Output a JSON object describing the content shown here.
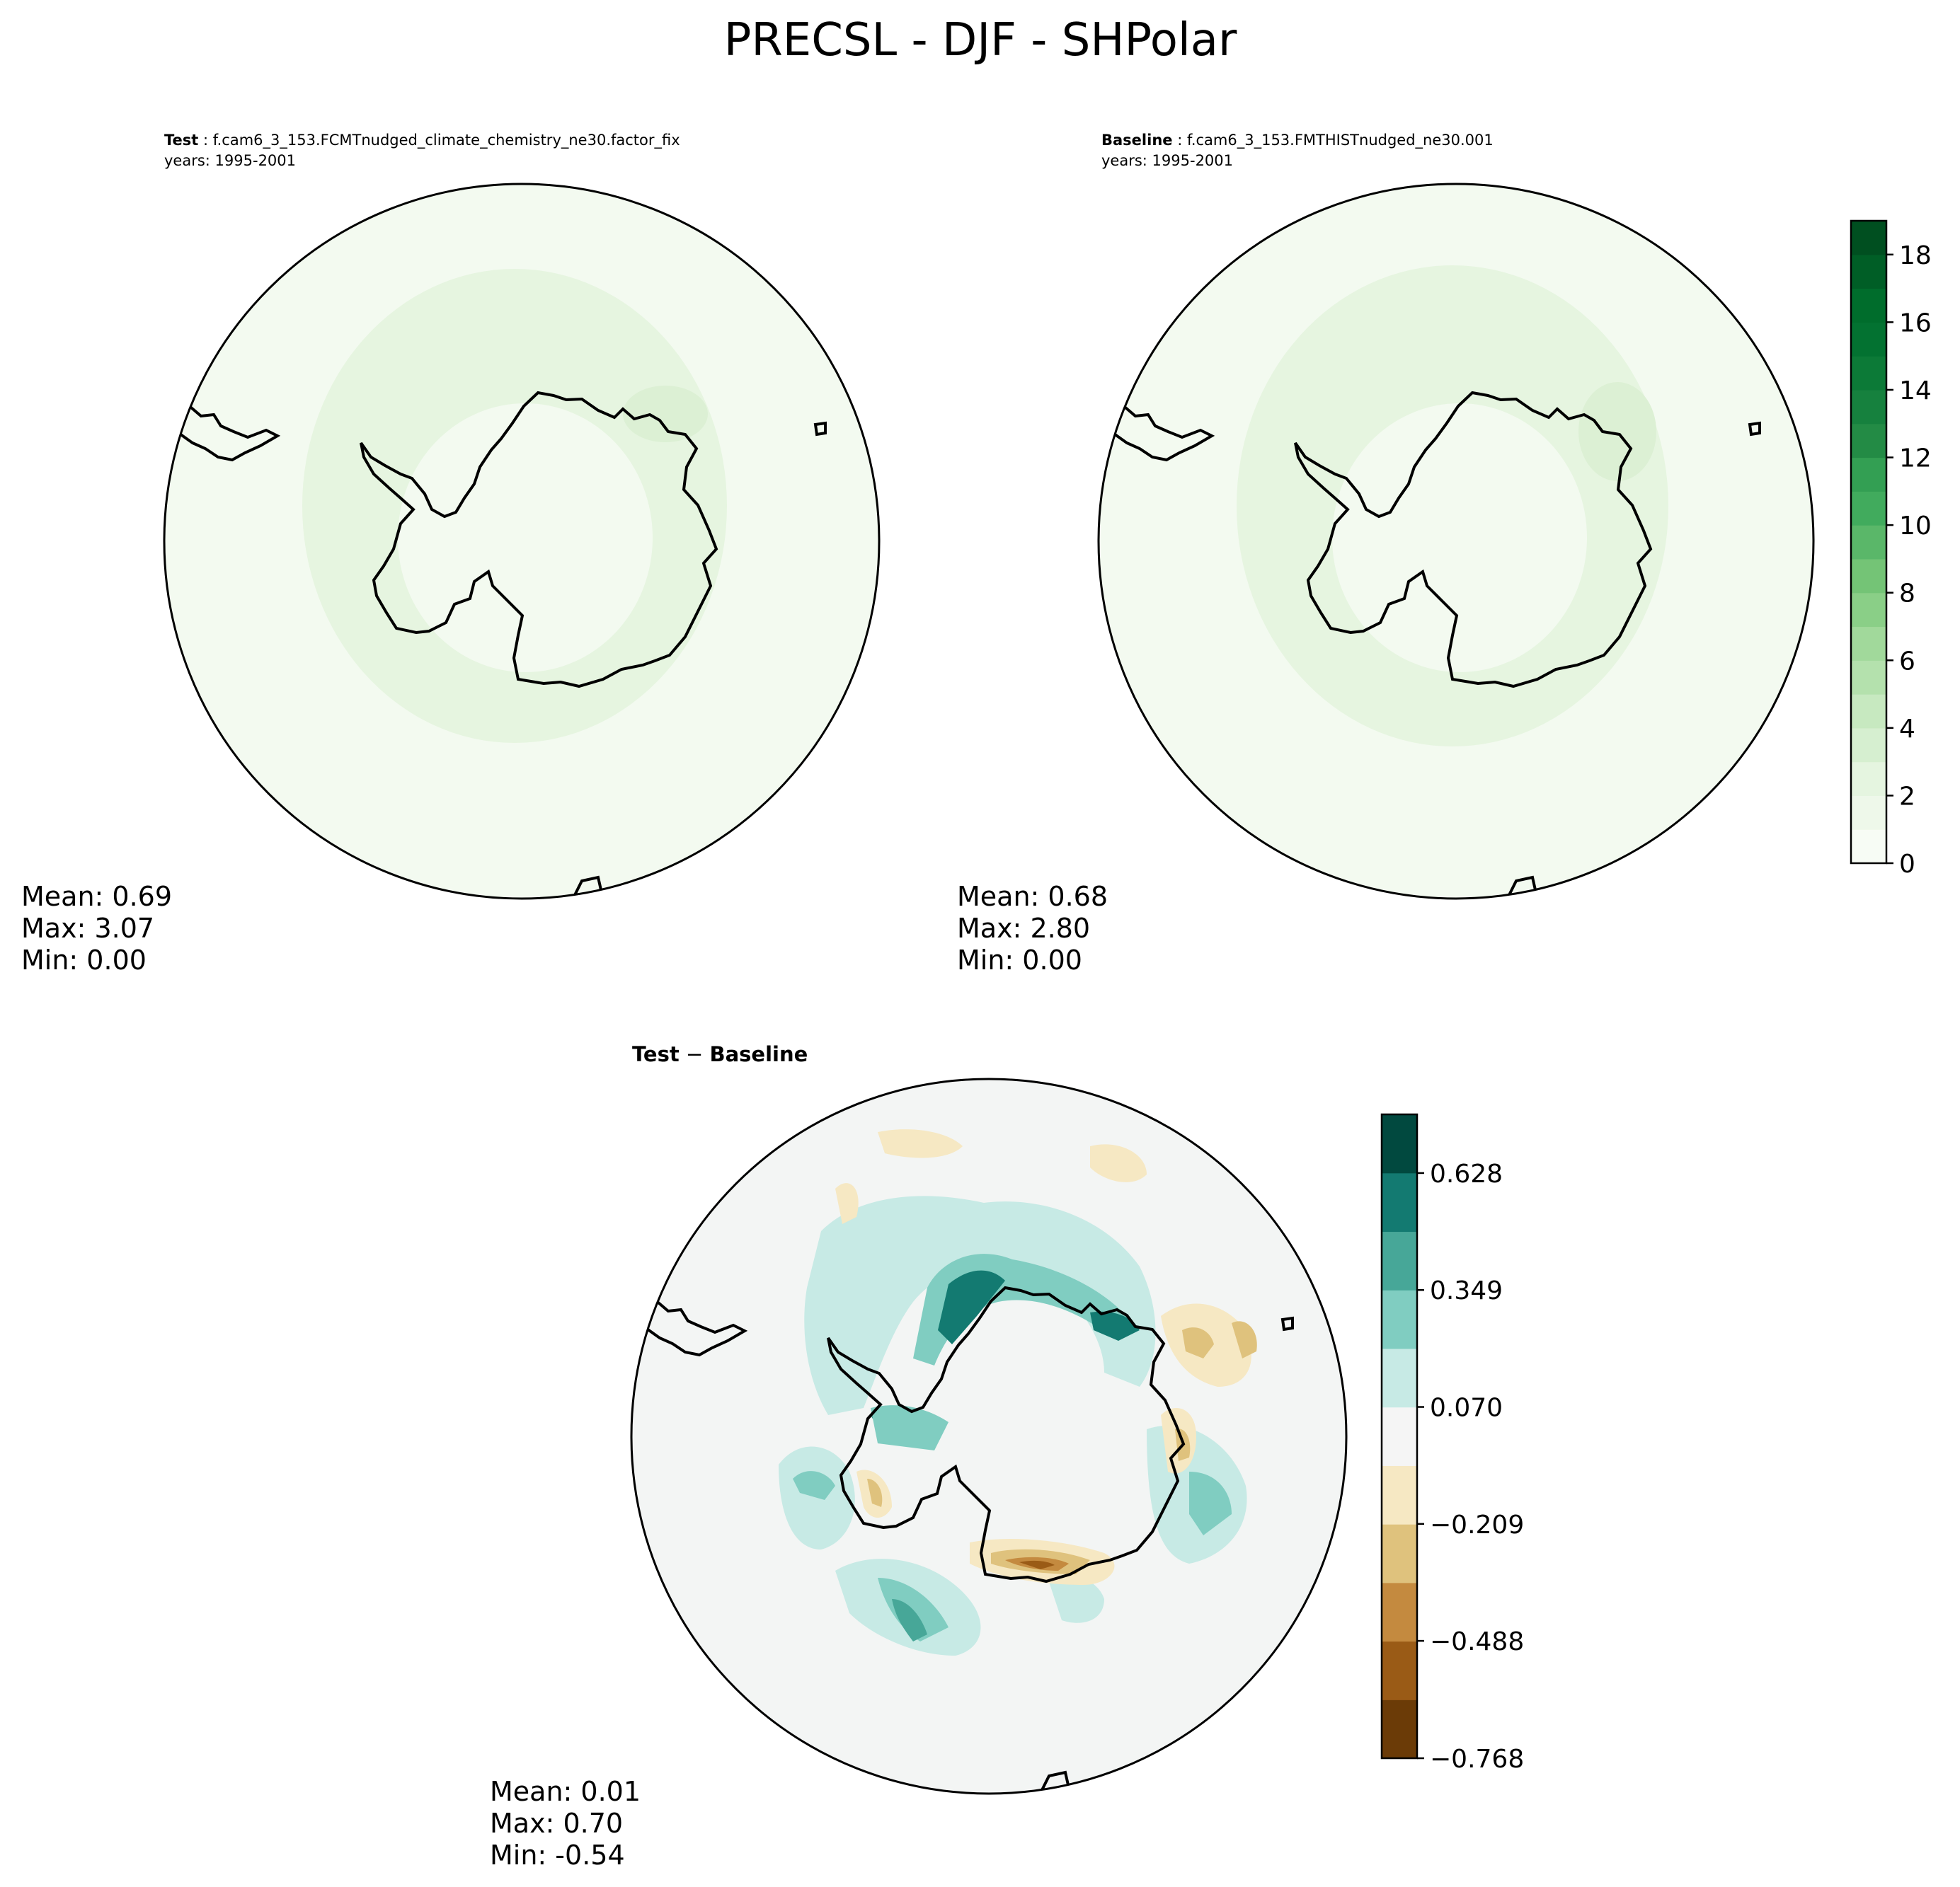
{
  "title": "PRECSL - DJF - SHPolar",
  "panels": {
    "test": {
      "label": "Test",
      "case": "f.cam6_3_153.FCMTnudged_climate_chemistry_ne30.factor_fix",
      "years": "years: 1995-2001",
      "stats": {
        "mean": "Mean:  0.69",
        "max": "Max:  3.07",
        "min": "Min:  0.00"
      }
    },
    "baseline": {
      "label": "Baseline",
      "case": "f.cam6_3_153.FMTHISTnudged_ne30.001",
      "years": "years: 1995-2001",
      "stats": {
        "mean": "Mean:  0.68",
        "max": "Max:  2.80",
        "min": "Min:  0.00"
      }
    },
    "diff": {
      "title_a": "Test",
      "title_op": " − ",
      "title_b": "Baseline",
      "stats": {
        "mean": "Mean:  0.01",
        "max": "Max:  0.70",
        "min": "Min: -0.54"
      }
    }
  },
  "chart_data": [
    {
      "type": "heatmap",
      "projection": "south-polar-stereographic",
      "name": "Test",
      "levels": [
        0,
        1,
        2,
        3,
        4,
        5,
        6,
        7,
        8,
        9,
        10,
        11,
        12,
        13,
        14,
        15,
        16,
        17,
        18,
        19
      ],
      "colormap": "Greens",
      "stats": {
        "mean": 0.69,
        "max": 3.07,
        "min": 0.0
      }
    },
    {
      "type": "heatmap",
      "projection": "south-polar-stereographic",
      "name": "Baseline",
      "levels": [
        0,
        1,
        2,
        3,
        4,
        5,
        6,
        7,
        8,
        9,
        10,
        11,
        12,
        13,
        14,
        15,
        16,
        17,
        18,
        19
      ],
      "colormap": "Greens",
      "stats": {
        "mean": 0.68,
        "max": 2.8,
        "min": 0.0
      }
    },
    {
      "type": "heatmap",
      "projection": "south-polar-stereographic",
      "name": "Test − Baseline",
      "levels": [
        -0.768,
        -0.628,
        -0.488,
        -0.349,
        -0.209,
        -0.07,
        0.07,
        0.209,
        0.349,
        0.488,
        0.628,
        0.768
      ],
      "colormap": "BrBG",
      "stats": {
        "mean": 0.01,
        "max": 0.7,
        "min": -0.54
      }
    }
  ],
  "colorbars": {
    "top": {
      "ticks": [
        "0",
        "2",
        "4",
        "6",
        "8",
        "10",
        "12",
        "14",
        "16",
        "18"
      ],
      "tick_values": [
        0,
        2,
        4,
        6,
        8,
        10,
        12,
        14,
        16,
        18
      ],
      "range": [
        0,
        19
      ],
      "colors": [
        "#f7fcf5",
        "#eef8ea",
        "#e5f5e0",
        "#d6efd0",
        "#c7e9c0",
        "#b4e1ad",
        "#a1d99b",
        "#8acf87",
        "#74c476",
        "#5ab769",
        "#41ab5d",
        "#339f53",
        "#238b45",
        "#16813e",
        "#0c7a37",
        "#037231",
        "#006d2c",
        "#005e26",
        "#004f20"
      ]
    },
    "diff": {
      "ticks": [
        "−0.768",
        "−0.488",
        "−0.209",
        "0.070",
        "0.349",
        "0.628"
      ],
      "tick_values": [
        -0.768,
        -0.488,
        -0.209,
        0.07,
        0.349,
        0.628
      ],
      "range": [
        -0.768,
        0.768
      ],
      "colors": [
        "#6b3b07",
        "#9a5b16",
        "#c48a3f",
        "#dfc27d",
        "#f6e8c3",
        "#f5f5f5",
        "#c7eae5",
        "#80cdc1",
        "#47a798",
        "#137a71",
        "#01493f"
      ]
    }
  }
}
